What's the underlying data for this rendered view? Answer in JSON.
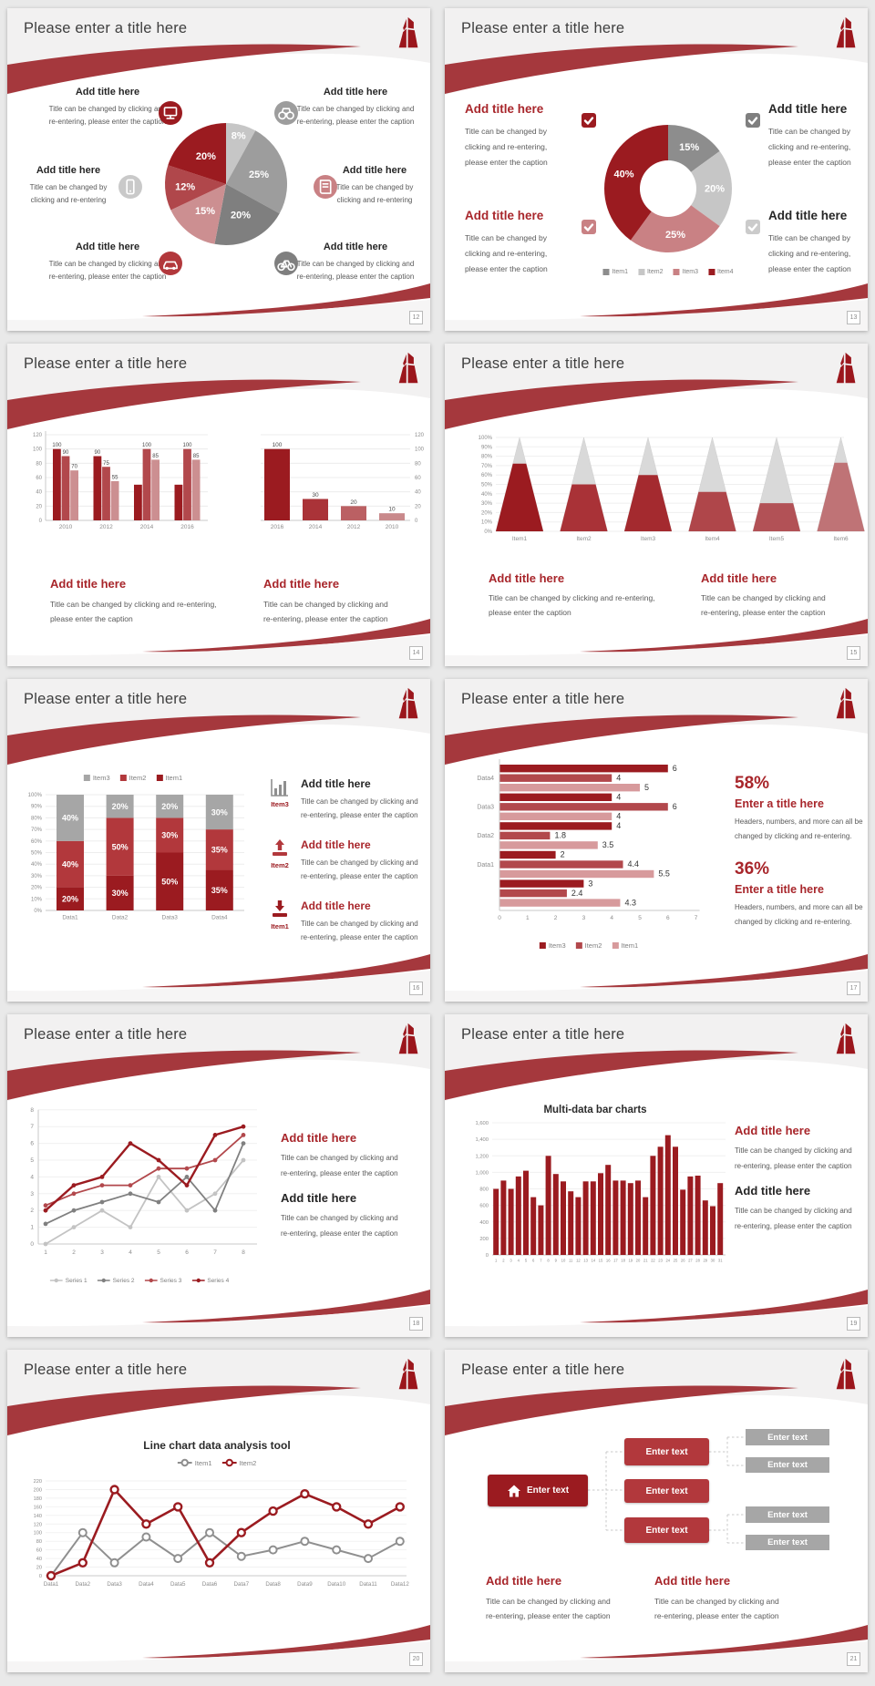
{
  "colors": {
    "dark_red": "#9b1b20",
    "mid_red": "#b2484c",
    "red": "#b2383c",
    "pink": "#c98184",
    "pale_pink": "#cc8f91",
    "gray_dark": "#7f7f7f",
    "gray": "#9d9d9d",
    "gray_light": "#c6c6c6",
    "heading_red": "#a8262b",
    "caption_text": "#595959",
    "swoosh_red": "#a5383d",
    "header_bg": "#f2f1f1",
    "footer_bg": "#f6f5f5",
    "page_bg": "#e9e9e9"
  },
  "common": {
    "slide_title": "Please enter a title here",
    "add_title": "Add title here"
  },
  "slides": [
    {
      "page": "12",
      "type": "pie",
      "blocks": [
        {
          "title": "Add title here",
          "lines": [
            "Title can be changed by clicking and",
            "re-entering, please enter the caption"
          ]
        },
        {
          "title": "Add title here",
          "lines": [
            "Title can be changed by",
            "clicking and re-entering"
          ]
        },
        {
          "title": "Add title here",
          "lines": [
            "Title can be changed by clicking and",
            "re-entering, please enter the caption"
          ]
        },
        {
          "title": "Add title here",
          "lines": [
            "Title can be changed by clicking and",
            "re-entering, please enter the caption"
          ]
        },
        {
          "title": "Add title here",
          "lines": [
            "Title can be changed by",
            "clicking and re-entering"
          ]
        },
        {
          "title": "Add title here",
          "lines": [
            "Title can be changed by clicking and",
            "re-entering, please enter the caption"
          ]
        }
      ],
      "icons": [
        "monitor",
        "phone",
        "car",
        "binoculars",
        "book",
        "bicycle"
      ],
      "icon_colors": [
        "#9b1b20",
        "#c9c9c9",
        "#b2383c",
        "#9d9d9d",
        "#c98184",
        "#7f7f7f"
      ],
      "chart_data": {
        "type": "pie",
        "slices": [
          {
            "label": "8%",
            "value": 8,
            "color": "#c6c6c6"
          },
          {
            "label": "25%",
            "value": 25,
            "color": "#9d9d9d"
          },
          {
            "label": "20%",
            "value": 20,
            "color": "#7f7f7f"
          },
          {
            "label": "15%",
            "value": 15,
            "color": "#cc8f91"
          },
          {
            "label": "12%",
            "value": 12,
            "color": "#b0474b"
          },
          {
            "label": "20%",
            "value": 20,
            "color": "#9b1b20"
          }
        ]
      }
    },
    {
      "page": "13",
      "type": "donut",
      "blocks": [
        {
          "title": "Add title here",
          "red": true,
          "check": "#9b1b20",
          "lines": [
            "Title can be changed by",
            "clicking and re-entering,",
            "please enter the caption"
          ]
        },
        {
          "title": "Add title here",
          "red": false,
          "check": "#7f7f7f",
          "lines": [
            "Title can be changed by",
            "clicking and re-entering,",
            "please enter the caption"
          ]
        },
        {
          "title": "Add title here",
          "red": true,
          "check": "#c98184",
          "lines": [
            "Title can be changed by",
            "clicking and re-entering,",
            "please enter the caption"
          ]
        },
        {
          "title": "Add title here",
          "red": false,
          "check": "#cbcbcb",
          "lines": [
            "Title can be changed by",
            "clicking and re-entering,",
            "please enter the caption"
          ]
        }
      ],
      "chart_data": {
        "type": "pie",
        "donut": true,
        "slices": [
          {
            "label": "15%",
            "value": 15,
            "color": "#8d8d8d"
          },
          {
            "label": "20%",
            "value": 20,
            "color": "#c6c6c6"
          },
          {
            "label": "25%",
            "value": 25,
            "color": "#c98184"
          },
          {
            "label": "40%",
            "value": 40,
            "color": "#9b1b20"
          }
        ],
        "legend": [
          {
            "label": "Item1",
            "color": "#8d8d8d"
          },
          {
            "label": "Item2",
            "color": "#c6c6c6"
          },
          {
            "label": "Item3",
            "color": "#c98184"
          },
          {
            "label": "Item4",
            "color": "#9b1b20"
          }
        ]
      }
    },
    {
      "page": "14",
      "type": "bars2",
      "chart_data": [
        {
          "type": "bar",
          "yticks": [
            0,
            20,
            40,
            60,
            80,
            100,
            120
          ],
          "categories": [
            "2010",
            "2012",
            "2014",
            "2016"
          ],
          "series_colors": [
            "#9b1b20",
            "#b2484c",
            "#cc8f91"
          ],
          "groups": [
            [
              100,
              90,
              70
            ],
            [
              90,
              75,
              55
            ],
            [
              50,
              100,
              85
            ],
            [
              50,
              100,
              85
            ]
          ],
          "bar_labels": [
            [
              "100",
              "90",
              "70"
            ],
            [
              "90",
              "75",
              "55"
            ],
            [
              null,
              "100",
              "85"
            ],
            [
              null,
              "100",
              "85"
            ]
          ]
        },
        {
          "type": "bar",
          "yticks": [
            0,
            20,
            40,
            60,
            80,
            100,
            120
          ],
          "categories": [
            "2016",
            "2014",
            "2012",
            "2010"
          ],
          "values": [
            100,
            30,
            20,
            10
          ],
          "bar_labels": [
            "100",
            "30",
            "20",
            "10"
          ],
          "colors": [
            "#9b1b20",
            "#aa3338",
            "#bb6063",
            "#c9898b"
          ]
        }
      ],
      "captions": [
        {
          "title": "Add title here",
          "lines": [
            "Title can be changed by clicking and re-entering,",
            "please enter the caption"
          ]
        },
        {
          "title": "Add title here",
          "lines": [
            "Title can be changed by clicking and",
            "re-entering, please enter the caption"
          ]
        }
      ]
    },
    {
      "page": "15",
      "type": "cones",
      "chart_data": {
        "type": "bar",
        "style": "cone",
        "yticks": [
          "0%",
          "10%",
          "20%",
          "30%",
          "40%",
          "50%",
          "60%",
          "70%",
          "80%",
          "90%",
          "100%"
        ],
        "categories": [
          "Item1",
          "Item2",
          "Item3",
          "Item4",
          "Item5",
          "Item6"
        ],
        "values": [
          72,
          50,
          60,
          42,
          30,
          73
        ],
        "colors": [
          "#9b1b20",
          "#a93237",
          "#a42a2f",
          "#af464a",
          "#b25156",
          "#bf7376"
        ],
        "top_color": "#d9d9d9"
      },
      "captions": [
        {
          "title": "Add title here",
          "lines": [
            "Title can be changed by clicking and re-entering,",
            "please enter the caption"
          ]
        },
        {
          "title": "Add title here",
          "lines": [
            "Title can be changed by clicking and",
            "re-entering, please enter the caption"
          ]
        }
      ]
    },
    {
      "page": "16",
      "type": "stacked",
      "chart_data": {
        "type": "bar",
        "stacked": true,
        "categories": [
          "Data1",
          "Data2",
          "Data3",
          "Data4"
        ],
        "series": [
          {
            "name": "Item1",
            "color": "#9b1b20",
            "values": [
              20,
              30,
              50,
              35
            ]
          },
          {
            "name": "Item2",
            "color": "#b2383c",
            "values": [
              40,
              50,
              30,
              35
            ]
          },
          {
            "name": "Item3",
            "color": "#a6a6a6",
            "values": [
              40,
              20,
              20,
              30
            ]
          }
        ],
        "yticks": [
          "0%",
          "10%",
          "20%",
          "30%",
          "40%",
          "50%",
          "60%",
          "70%",
          "80%",
          "90%",
          "100%"
        ]
      },
      "items": [
        {
          "icon": "chart-bars",
          "icon_color": "#8f8f8f",
          "label": "Item3",
          "title": "Add title here",
          "red": false,
          "lines": [
            "Title can be changed by clicking and",
            "re-entering, please enter the caption"
          ]
        },
        {
          "icon": "arrow-up",
          "icon_color": "#b2383c",
          "label": "Item2",
          "title": "Add title here",
          "red": true,
          "lines": [
            "Title can be changed by clicking and",
            "re-entering, please enter the caption"
          ]
        },
        {
          "icon": "arrow-down",
          "icon_color": "#9b1b20",
          "label": "Item1",
          "title": "Add title here",
          "red": true,
          "lines": [
            "Title can be changed by clicking and",
            "re-entering, please enter the caption"
          ]
        }
      ]
    },
    {
      "page": "17",
      "type": "hbars",
      "chart_data": {
        "type": "bar",
        "horizontal": true,
        "xticks": [
          0,
          1,
          2,
          3,
          4,
          5,
          6,
          7
        ],
        "categories": [
          "Data4",
          "Data3",
          "Data2",
          "Data1",
          ""
        ],
        "series_names": [
          "Item3",
          "Item2",
          "Item1"
        ],
        "series_colors": [
          "#9b1b20",
          "#b2484c",
          "#d79a9c"
        ],
        "groups": [
          [
            6,
            4,
            5
          ],
          [
            4,
            6,
            4
          ],
          [
            4,
            1.8,
            3.5
          ],
          [
            2,
            4.4,
            5.5
          ],
          [
            3,
            2.4,
            4.3
          ]
        ],
        "bar_labels": [
          [
            "6",
            "4",
            "5"
          ],
          [
            "4",
            "6",
            "4"
          ],
          [
            "4",
            "1.8",
            "3.5"
          ],
          [
            "2",
            "4.4",
            "5.5"
          ],
          [
            "3",
            "2.4",
            "4.3"
          ]
        ]
      },
      "stats": [
        {
          "pct": "58%",
          "title": "Enter a title here",
          "lines": [
            "Headers, numbers, and more can all be",
            "changed by clicking and re-entering."
          ]
        },
        {
          "pct": "36%",
          "title": "Enter a title here",
          "lines": [
            "Headers, numbers, and more can all be",
            "changed by clicking and re-entering."
          ]
        }
      ]
    },
    {
      "page": "18",
      "type": "lines4",
      "chart_data": {
        "type": "line",
        "x": [
          1,
          2,
          3,
          4,
          5,
          6,
          7,
          8
        ],
        "ylim": [
          0,
          8
        ],
        "series": [
          {
            "name": "Series 1",
            "color": "#c3c3c3",
            "values": [
              0,
              1,
              2,
              1,
              4,
              2,
              3,
              5
            ]
          },
          {
            "name": "Series 2",
            "color": "#808080",
            "values": [
              1.2,
              2,
              2.5,
              3,
              2.5,
              4,
              2,
              6
            ]
          },
          {
            "name": "Series 3",
            "color": "#b2484c",
            "values": [
              2.3,
              3,
              3.5,
              3.5,
              4.5,
              4.5,
              5,
              6.5
            ]
          },
          {
            "name": "Series 4",
            "color": "#9b1b20",
            "values": [
              2,
              3.5,
              4,
              6,
              5,
              3.5,
              6.5,
              7
            ]
          }
        ]
      },
      "texts": [
        {
          "title": "Add title here",
          "red": true,
          "lines": [
            "Title can be changed by clicking and",
            "re-entering, please enter the caption"
          ]
        },
        {
          "title": "Add title here",
          "red": false,
          "lines": [
            "Title can be changed by clicking and",
            "re-entering, please enter the caption"
          ]
        }
      ]
    },
    {
      "page": "19",
      "type": "bars31",
      "chart_data": {
        "type": "bar",
        "title": "Multi-data bar charts",
        "color": "#9b1b20",
        "ymax": 1600,
        "yticks": [
          "0",
          "200",
          "400",
          "600",
          "800",
          "1,000",
          "1,200",
          "1,400",
          "1,600"
        ],
        "x": [
          "1",
          "2",
          "3",
          "4",
          "5",
          "6",
          "7",
          "8",
          "9",
          "10",
          "11",
          "12",
          "13",
          "14",
          "15",
          "16",
          "17",
          "18",
          "19",
          "20",
          "21",
          "22",
          "23",
          "24",
          "25",
          "26",
          "27",
          "28",
          "29",
          "30",
          "31"
        ],
        "values": [
          800,
          900,
          800,
          950,
          1020,
          700,
          600,
          1200,
          980,
          890,
          770,
          700,
          890,
          890,
          990,
          1090,
          900,
          900,
          870,
          900,
          700,
          1200,
          1310,
          1450,
          1310,
          790,
          950,
          960,
          660,
          590,
          870
        ]
      },
      "texts": [
        {
          "title": "Add title here",
          "red": true,
          "lines": [
            "Title can be changed by clicking and",
            "re-entering, please enter the caption"
          ]
        },
        {
          "title": "Add title here",
          "red": false,
          "lines": [
            "Title can be changed by clicking and",
            "re-entering, please enter the caption"
          ]
        }
      ]
    },
    {
      "page": "20",
      "type": "lines12",
      "chart_data": {
        "type": "line",
        "title": "Line chart data analysis tool",
        "ymax": 220,
        "yticks": [
          0,
          20,
          40,
          60,
          80,
          100,
          120,
          140,
          160,
          180,
          200,
          220
        ],
        "categories": [
          "Data1",
          "Data2",
          "Data3",
          "Data4",
          "Data5",
          "Data6",
          "Data7",
          "Data8",
          "Data9",
          "Data10",
          "Data11",
          "Data12"
        ],
        "series": [
          {
            "name": "Item1",
            "color": "#8f8f8f",
            "values": [
              0,
              100,
              30,
              90,
              40,
              100,
              45,
              60,
              80,
              60,
              40,
              80
            ]
          },
          {
            "name": "Item2",
            "color": "#9b1b20",
            "values": [
              0,
              30,
              200,
              120,
              160,
              30,
              100,
              150,
              190,
              160,
              120,
              160
            ]
          }
        ]
      }
    },
    {
      "page": "21",
      "type": "diagram",
      "root": {
        "label": "Enter text",
        "color": "#9b1b20"
      },
      "mid_color": "#b2383c",
      "mid": [
        {
          "label": "Enter text"
        },
        {
          "label": "Enter text"
        },
        {
          "label": "Enter text"
        }
      ],
      "leaf_color": "#a6a6a6",
      "leaves": [
        {
          "label": "Enter text"
        },
        {
          "label": "Enter text"
        },
        {
          "label": "Enter text"
        },
        {
          "label": "Enter text"
        }
      ],
      "captions": [
        {
          "title": "Add title here",
          "lines": [
            "Title can be changed by clicking and",
            "re-entering, please enter the caption"
          ]
        },
        {
          "title": "Add title here",
          "lines": [
            "Title can be changed by clicking and",
            "re-entering, please enter the caption"
          ]
        }
      ]
    }
  ]
}
